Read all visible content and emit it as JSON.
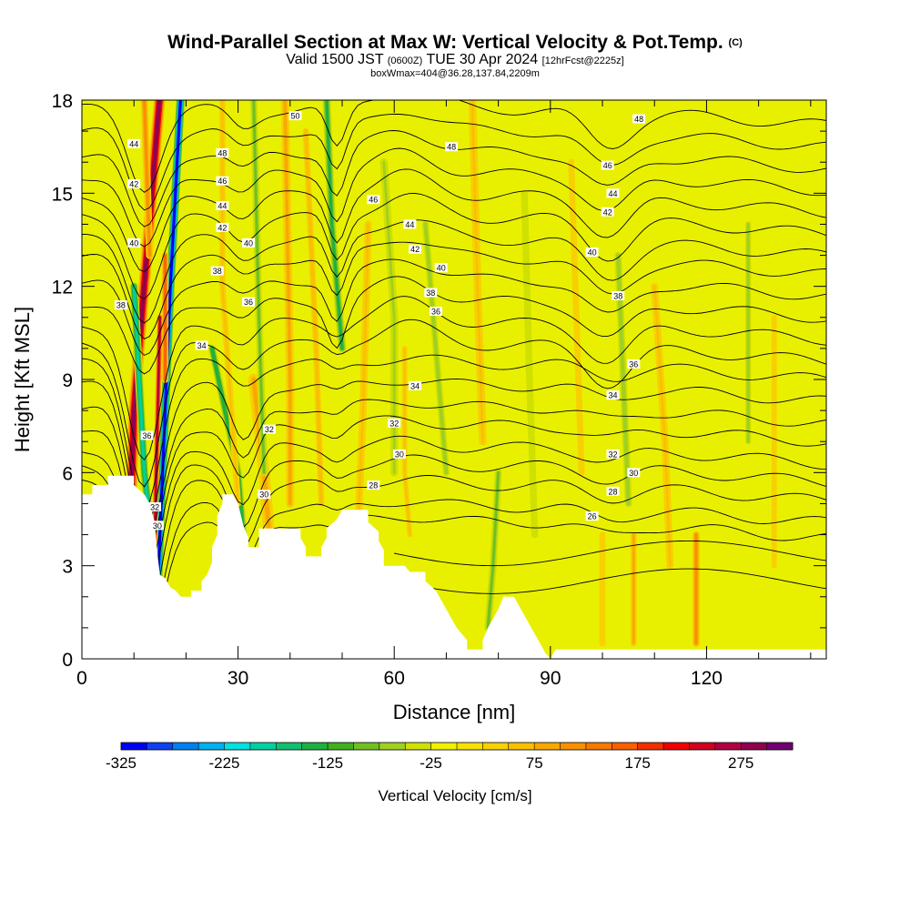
{
  "title": {
    "main": "Wind-Parallel Section at Max W: Vertical Velocity & Pot.Temp.",
    "copyright": "(C)",
    "valid_prefix": "Valid 1500 JST",
    "valid_utc": "(0600Z)",
    "valid_date": "TUE 30 Apr 2024",
    "forecast": "[12hrFcst@2225z]",
    "box_info": "boxWmax=404@36.28,137.84,2209m"
  },
  "colors": {
    "plot_background": "#e8f000",
    "terrain": "#ffffff",
    "contour_line": "#000000",
    "colorbar": [
      "#0000f0",
      "#1040f0",
      "#0080f0",
      "#00b0f0",
      "#00e0e0",
      "#00d0a0",
      "#10c070",
      "#20b040",
      "#40b020",
      "#70c020",
      "#a0d020",
      "#d0e000",
      "#f0f000",
      "#f8e000",
      "#f8d000",
      "#f8c000",
      "#f8a800",
      "#f89000",
      "#f87800",
      "#f86000",
      "#f03000",
      "#f00000",
      "#d00020",
      "#b00040",
      "#900050",
      "#700070"
    ]
  },
  "chart_data": {
    "type": "heatmap",
    "xlabel": "Distance [nm]",
    "ylabel": "Height [Kft MSL]",
    "xlim": [
      0,
      143
    ],
    "ylim": [
      0,
      18
    ],
    "xticks": [
      0,
      30,
      60,
      90,
      120
    ],
    "yticks": [
      0,
      3,
      6,
      9,
      12,
      15,
      18
    ],
    "colorbar": {
      "label": "Vertical Velocity [cm/s]",
      "min": -325,
      "max": 325,
      "step": 25,
      "tick_values": [
        -325,
        -225,
        -125,
        -25,
        75,
        175,
        275
      ]
    },
    "terrain_profile": [
      [
        0,
        5.3
      ],
      [
        2,
        5.3
      ],
      [
        2,
        5.6
      ],
      [
        5,
        5.6
      ],
      [
        5,
        5.9
      ],
      [
        10,
        5.9
      ],
      [
        10,
        5.6
      ],
      [
        12,
        5.3
      ],
      [
        13,
        5.0
      ],
      [
        14,
        4.4
      ],
      [
        14.5,
        3.4
      ],
      [
        15,
        2.7
      ],
      [
        16,
        2.6
      ],
      [
        17,
        2.3
      ],
      [
        18,
        2.2
      ],
      [
        19,
        2.0
      ],
      [
        21,
        2.0
      ],
      [
        21,
        2.2
      ],
      [
        23,
        2.2
      ],
      [
        23,
        2.5
      ],
      [
        24,
        2.7
      ],
      [
        25,
        3.1
      ],
      [
        25,
        3.6
      ],
      [
        26,
        4.0
      ],
      [
        26,
        4.6
      ],
      [
        27,
        5.0
      ],
      [
        27,
        5.3
      ],
      [
        29,
        5.3
      ],
      [
        30,
        5.0
      ],
      [
        31,
        4.3
      ],
      [
        32,
        3.9
      ],
      [
        32,
        3.6
      ],
      [
        34,
        3.6
      ],
      [
        34,
        4.2
      ],
      [
        42,
        4.2
      ],
      [
        42,
        3.9
      ],
      [
        43,
        3.6
      ],
      [
        43,
        3.3
      ],
      [
        46,
        3.3
      ],
      [
        46,
        3.6
      ],
      [
        47,
        3.9
      ],
      [
        47,
        4.2
      ],
      [
        49,
        4.5
      ],
      [
        50,
        4.8
      ],
      [
        55,
        4.8
      ],
      [
        55,
        4.4
      ],
      [
        57,
        4.1
      ],
      [
        57,
        3.8
      ],
      [
        58,
        3.5
      ],
      [
        58,
        3.0
      ],
      [
        62,
        3.0
      ],
      [
        63,
        2.8
      ],
      [
        66,
        2.8
      ],
      [
        66,
        2.5
      ],
      [
        68,
        2.2
      ],
      [
        69,
        1.9
      ],
      [
        70,
        1.6
      ],
      [
        71,
        1.3
      ],
      [
        72,
        1.0
      ],
      [
        73,
        0.8
      ],
      [
        74,
        0.6
      ],
      [
        74,
        0.3
      ],
      [
        77,
        0.3
      ],
      [
        77,
        0.6
      ],
      [
        78,
        1.0
      ],
      [
        79,
        1.3
      ],
      [
        80,
        1.6
      ],
      [
        81,
        2.0
      ],
      [
        83,
        2.0
      ],
      [
        84,
        1.7
      ],
      [
        85,
        1.4
      ],
      [
        86,
        1.1
      ],
      [
        87,
        0.8
      ],
      [
        88,
        0.5
      ],
      [
        89,
        0.2
      ],
      [
        90,
        0.0
      ],
      [
        91,
        0.3
      ],
      [
        143,
        0.3
      ]
    ],
    "theta_contours": [
      {
        "label": "26",
        "pos": [
          98,
          4.6
        ]
      },
      {
        "label": "28",
        "pos": [
          56,
          5.6
        ]
      },
      {
        "label": "28",
        "pos": [
          102,
          5.4
        ]
      },
      {
        "label": "30",
        "pos": [
          61,
          6.6
        ]
      },
      {
        "label": "30",
        "pos": [
          35,
          5.3
        ]
      },
      {
        "label": "30",
        "pos": [
          106,
          6.0
        ]
      },
      {
        "label": "30",
        "pos": [
          14.5,
          4.3
        ]
      },
      {
        "label": "32",
        "pos": [
          14,
          4.9
        ]
      },
      {
        "label": "32",
        "pos": [
          60,
          7.6
        ]
      },
      {
        "label": "32",
        "pos": [
          36,
          7.4
        ]
      },
      {
        "label": "32",
        "pos": [
          102,
          6.6
        ]
      },
      {
        "label": "34",
        "pos": [
          64,
          8.8
        ]
      },
      {
        "label": "34",
        "pos": [
          23,
          10.1
        ]
      },
      {
        "label": "34",
        "pos": [
          102,
          8.5
        ]
      },
      {
        "label": "36",
        "pos": [
          12.5,
          7.2
        ]
      },
      {
        "label": "36",
        "pos": [
          68,
          11.2
        ]
      },
      {
        "label": "36",
        "pos": [
          32,
          11.5
        ]
      },
      {
        "label": "36",
        "pos": [
          106,
          9.5
        ]
      },
      {
        "label": "38",
        "pos": [
          7.5,
          11.4
        ]
      },
      {
        "label": "38",
        "pos": [
          26,
          12.5
        ]
      },
      {
        "label": "38",
        "pos": [
          67,
          11.8
        ]
      },
      {
        "label": "38",
        "pos": [
          103,
          11.7
        ]
      },
      {
        "label": "40",
        "pos": [
          10,
          13.4
        ]
      },
      {
        "label": "40",
        "pos": [
          32,
          13.4
        ]
      },
      {
        "label": "40",
        "pos": [
          69,
          12.6
        ]
      },
      {
        "label": "40",
        "pos": [
          98,
          13.1
        ]
      },
      {
        "label": "42",
        "pos": [
          10,
          15.3
        ]
      },
      {
        "label": "42",
        "pos": [
          27,
          13.9
        ]
      },
      {
        "label": "42",
        "pos": [
          64,
          13.2
        ]
      },
      {
        "label": "42",
        "pos": [
          101,
          14.4
        ]
      },
      {
        "label": "44",
        "pos": [
          10,
          16.6
        ]
      },
      {
        "label": "44",
        "pos": [
          27,
          14.6
        ]
      },
      {
        "label": "44",
        "pos": [
          63,
          14.0
        ]
      },
      {
        "label": "44",
        "pos": [
          102,
          15.0
        ]
      },
      {
        "label": "46",
        "pos": [
          27,
          15.4
        ]
      },
      {
        "label": "46",
        "pos": [
          56,
          14.8
        ]
      },
      {
        "label": "46",
        "pos": [
          101,
          15.9
        ]
      },
      {
        "label": "48",
        "pos": [
          27,
          16.3
        ]
      },
      {
        "label": "48",
        "pos": [
          71,
          16.5
        ]
      },
      {
        "label": "48",
        "pos": [
          107,
          17.4
        ]
      },
      {
        "label": "50",
        "pos": [
          41,
          17.5
        ]
      }
    ]
  }
}
